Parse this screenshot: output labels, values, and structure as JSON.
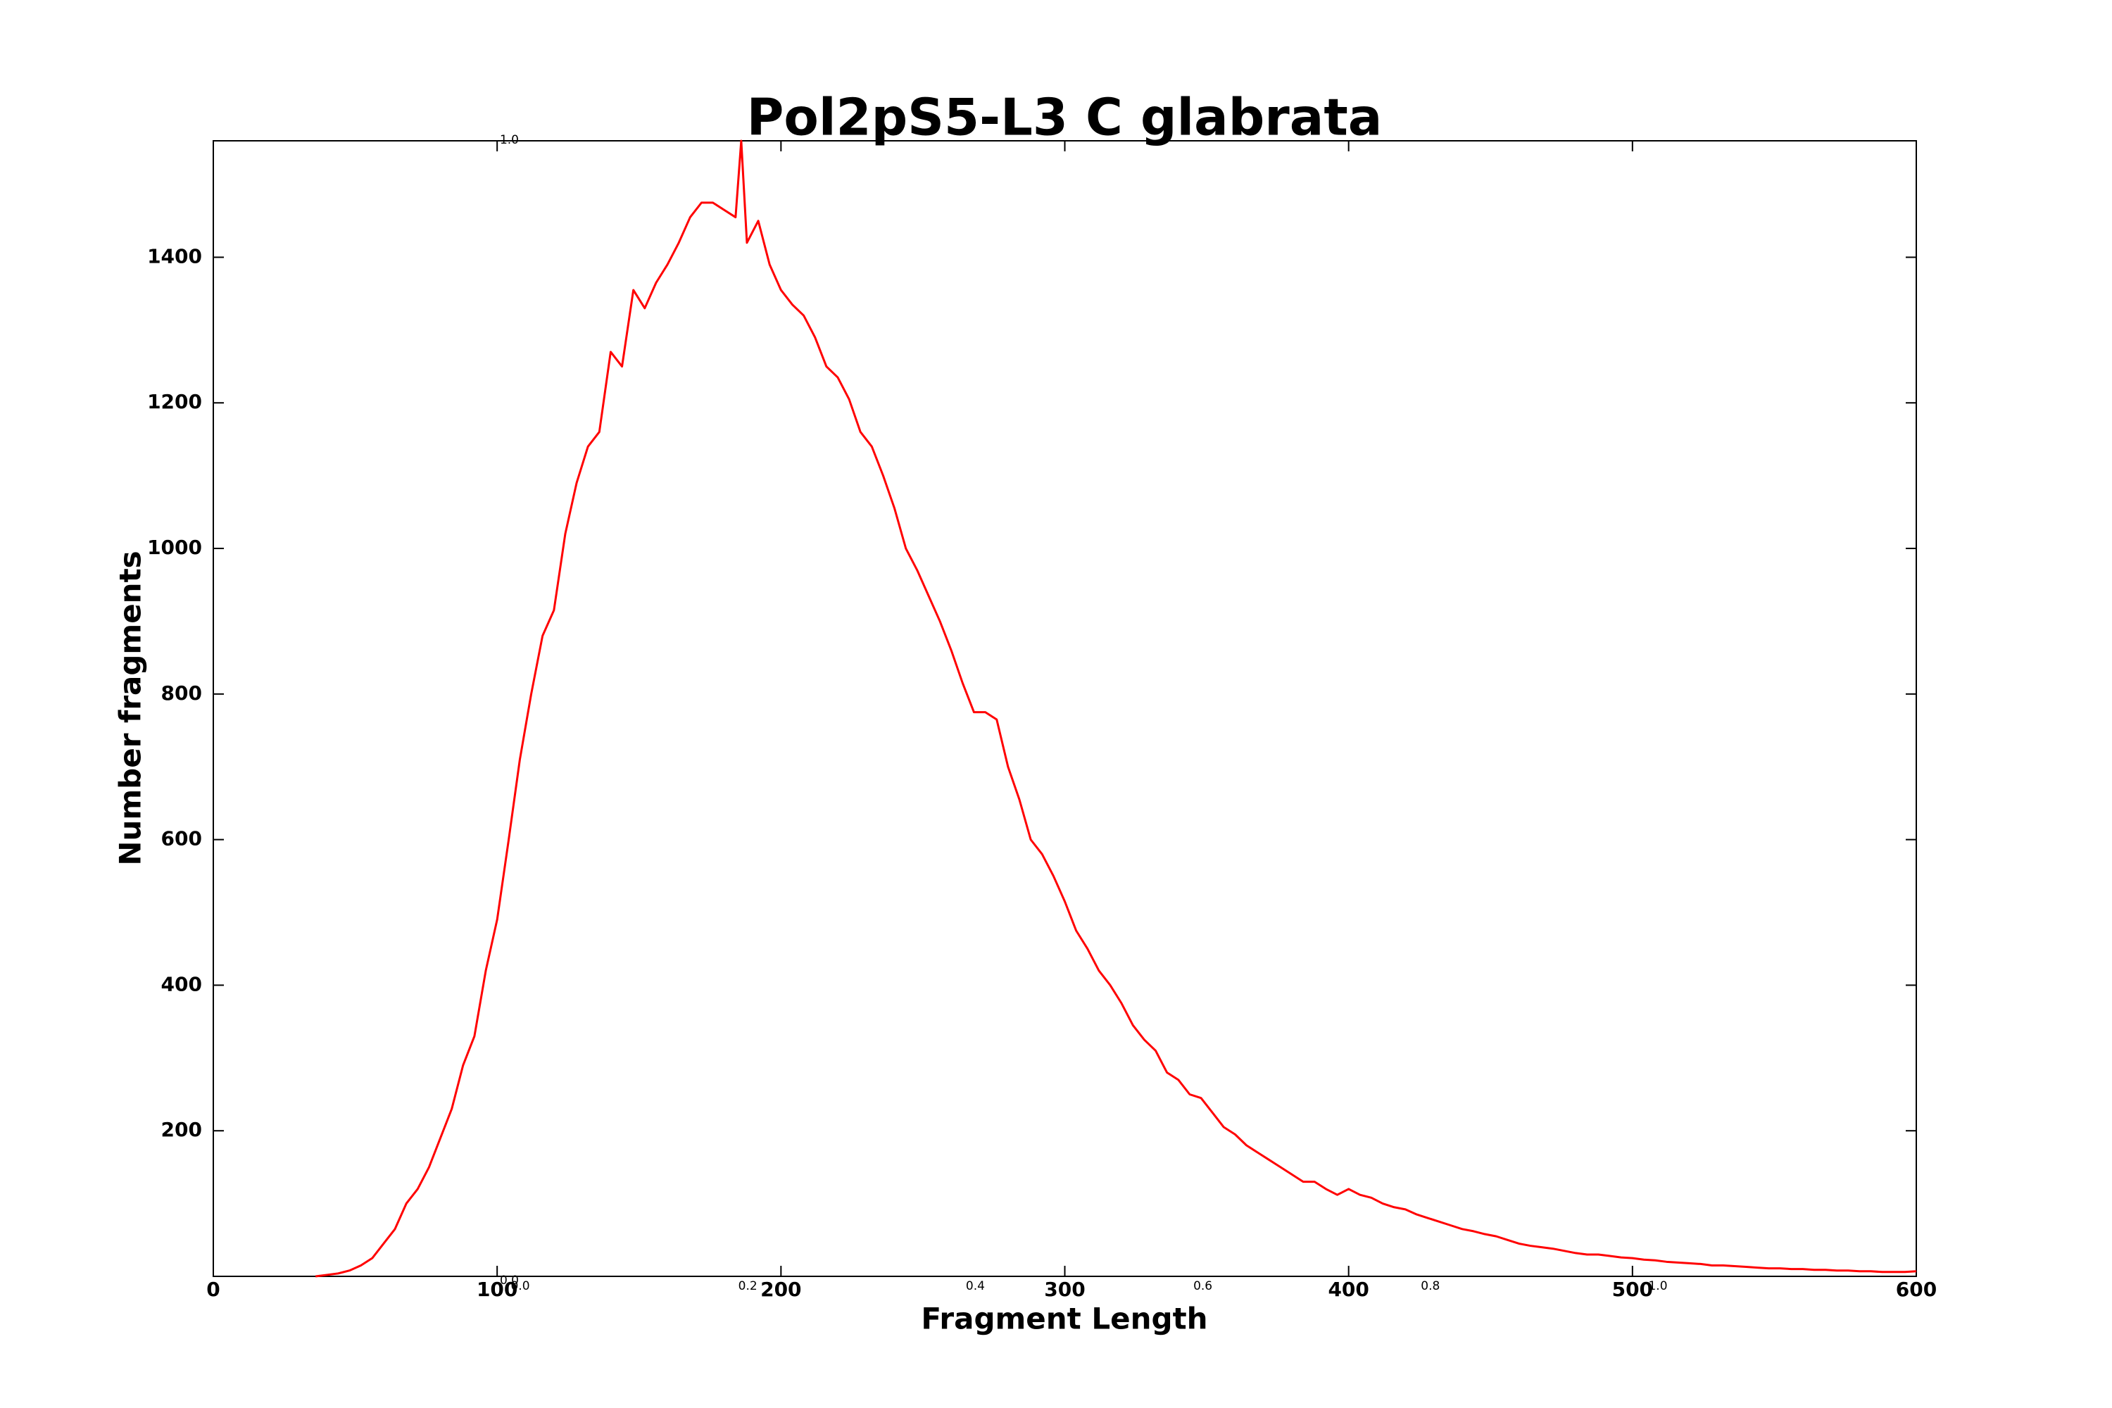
{
  "chart_data": [
    {
      "type": "line",
      "title": "Pol2pS5-L3 C glabrata",
      "x_label": "Fragment Length",
      "y_label": "Number fragments",
      "color": "#ff0000",
      "grid": false,
      "x": [
        36,
        40,
        44,
        48,
        52,
        56,
        60,
        64,
        68,
        72,
        76,
        80,
        84,
        88,
        92,
        96,
        100,
        104,
        108,
        112,
        116,
        120,
        124,
        128,
        132,
        136,
        140,
        144,
        148,
        152,
        156,
        160,
        164,
        168,
        172,
        176,
        180,
        184,
        186,
        188,
        192,
        196,
        200,
        204,
        208,
        212,
        216,
        220,
        224,
        228,
        232,
        236,
        240,
        244,
        248,
        252,
        256,
        260,
        264,
        268,
        272,
        276,
        280,
        284,
        288,
        292,
        296,
        300,
        304,
        308,
        312,
        316,
        320,
        324,
        328,
        332,
        336,
        340,
        344,
        348,
        352,
        356,
        360,
        364,
        368,
        372,
        376,
        380,
        384,
        388,
        392,
        396,
        400,
        404,
        408,
        412,
        416,
        420,
        424,
        428,
        432,
        436,
        440,
        444,
        448,
        452,
        456,
        460,
        464,
        468,
        472,
        476,
        480,
        484,
        488,
        492,
        496,
        500,
        504,
        508,
        512,
        516,
        520,
        524,
        528,
        532,
        536,
        540,
        544,
        548,
        552,
        556,
        560,
        564,
        568,
        572,
        576,
        580,
        584,
        588,
        592,
        596,
        600
      ],
      "values": [
        0,
        2,
        4,
        8,
        15,
        25,
        45,
        65,
        100,
        120,
        150,
        190,
        230,
        290,
        330,
        420,
        490,
        598,
        710,
        800,
        880,
        915,
        1020,
        1090,
        1140,
        1160,
        1270,
        1250,
        1355,
        1330,
        1365,
        1390,
        1420,
        1455,
        1475,
        1475,
        1465,
        1455,
        1560,
        1420,
        1450,
        1390,
        1355,
        1335,
        1320,
        1290,
        1250,
        1235,
        1205,
        1160,
        1140,
        1100,
        1055,
        1000,
        970,
        935,
        900,
        860,
        815,
        775,
        775,
        765,
        700,
        655,
        600,
        580,
        550,
        515,
        475,
        450,
        420,
        400,
        375,
        345,
        325,
        310,
        280,
        270,
        250,
        245,
        225,
        205,
        195,
        180,
        170,
        160,
        150,
        140,
        130,
        130,
        120,
        112,
        120,
        112,
        108,
        100,
        95,
        92,
        85,
        80,
        75,
        70,
        65,
        62,
        58,
        55,
        50,
        45,
        42,
        40,
        38,
        35,
        32,
        30,
        30,
        28,
        26,
        25,
        23,
        22,
        20,
        19,
        18,
        17,
        15,
        15,
        14,
        13,
        12,
        11,
        11,
        10,
        10,
        9,
        9,
        8,
        8,
        7,
        7,
        6,
        6,
        6,
        7
      ],
      "xlim": [
        0,
        600
      ],
      "xticks": [
        0,
        100,
        200,
        300,
        400,
        500,
        600
      ],
      "ylim": [
        0,
        1560
      ],
      "yticks": [
        200,
        400,
        600,
        800,
        1000,
        1200,
        1400
      ]
    },
    {
      "type": "empty",
      "xlim": [
        0,
        1
      ],
      "xticks": [
        {
          "value": 0,
          "label": "0.0"
        },
        0.2,
        0.4,
        0.6,
        0.8,
        {
          "value": 1,
          "label": "1.0"
        }
      ],
      "ylim": [
        0,
        1
      ],
      "yticks": [
        {
          "value": 0,
          "label": "0.0"
        },
        {
          "value": 1,
          "label": "1.0"
        }
      ]
    }
  ]
}
